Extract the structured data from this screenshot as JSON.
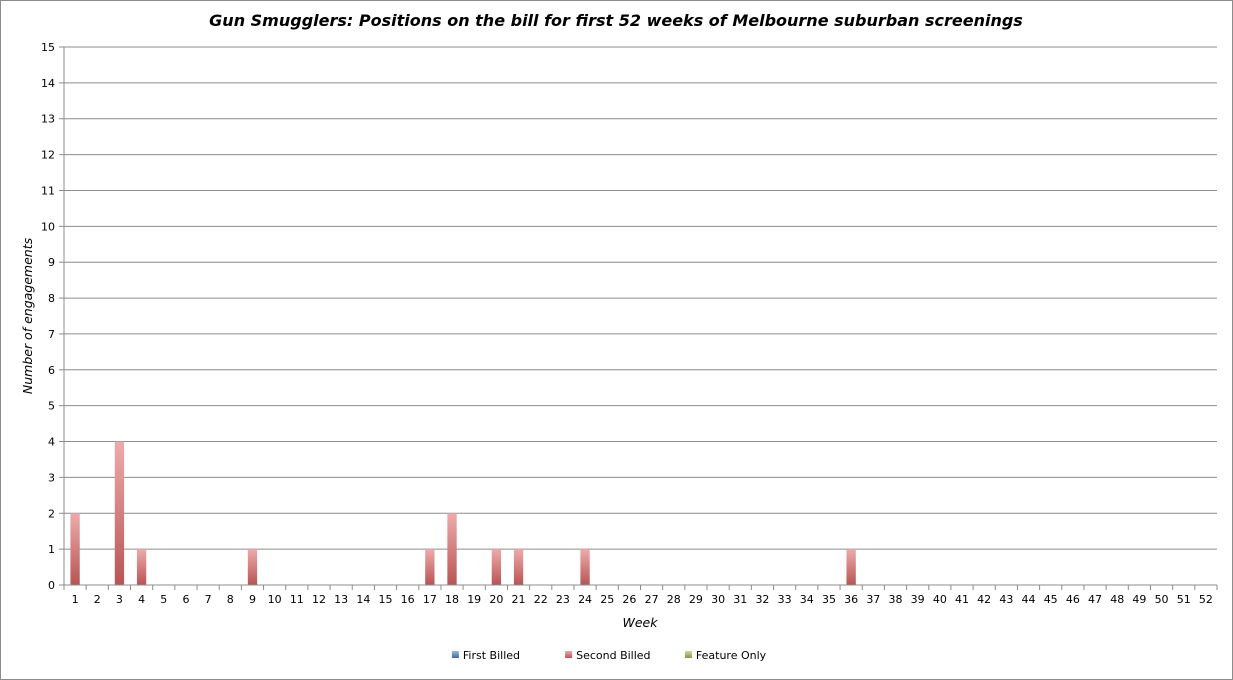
{
  "chart_data": {
    "type": "bar",
    "stacked": true,
    "title": "Gun Smugglers: Positions on the bill for first 52 weeks of Melbourne suburban screenings",
    "xlabel": "Week",
    "ylabel": "Number of engagements",
    "ylim": [
      0,
      15
    ],
    "ytick_step": 1,
    "grid": true,
    "legend_position": "bottom",
    "categories": [
      "1",
      "2",
      "3",
      "4",
      "5",
      "6",
      "7",
      "8",
      "9",
      "10",
      "11",
      "12",
      "13",
      "14",
      "15",
      "16",
      "17",
      "18",
      "19",
      "20",
      "21",
      "22",
      "23",
      "24",
      "25",
      "26",
      "27",
      "28",
      "29",
      "30",
      "31",
      "32",
      "33",
      "34",
      "35",
      "36",
      "37",
      "38",
      "39",
      "40",
      "41",
      "42",
      "43",
      "44",
      "45",
      "46",
      "47",
      "48",
      "49",
      "50",
      "51",
      "52"
    ],
    "series": [
      {
        "name": "First Billed",
        "color": "#4f81bd",
        "values": [
          0,
          0,
          0,
          0,
          0,
          0,
          0,
          0,
          0,
          0,
          0,
          0,
          0,
          0,
          0,
          0,
          0,
          0,
          0,
          0,
          0,
          0,
          0,
          0,
          0,
          0,
          0,
          0,
          0,
          0,
          0,
          0,
          0,
          0,
          0,
          0,
          0,
          0,
          0,
          0,
          0,
          0,
          0,
          0,
          0,
          0,
          0,
          0,
          0,
          0,
          0,
          0
        ]
      },
      {
        "name": "Second Billed",
        "color": "#e06666",
        "values": [
          2,
          0,
          4,
          1,
          0,
          0,
          0,
          0,
          1,
          0,
          0,
          0,
          0,
          0,
          0,
          0,
          1,
          2,
          0,
          1,
          1,
          0,
          0,
          1,
          0,
          0,
          0,
          0,
          0,
          0,
          0,
          0,
          0,
          0,
          0,
          1,
          0,
          0,
          0,
          0,
          0,
          0,
          0,
          0,
          0,
          0,
          0,
          0,
          0,
          0,
          0,
          0
        ]
      },
      {
        "name": "Feature Only",
        "color": "#9bbb59",
        "values": [
          0,
          0,
          0,
          0,
          0,
          0,
          0,
          0,
          0,
          0,
          0,
          0,
          0,
          0,
          0,
          0,
          0,
          0,
          0,
          0,
          0,
          0,
          0,
          0,
          0,
          0,
          0,
          0,
          0,
          0,
          0,
          0,
          0,
          0,
          0,
          0,
          0,
          0,
          0,
          0,
          0,
          0,
          0,
          0,
          0,
          0,
          0,
          0,
          0,
          0,
          0,
          0
        ]
      }
    ]
  }
}
